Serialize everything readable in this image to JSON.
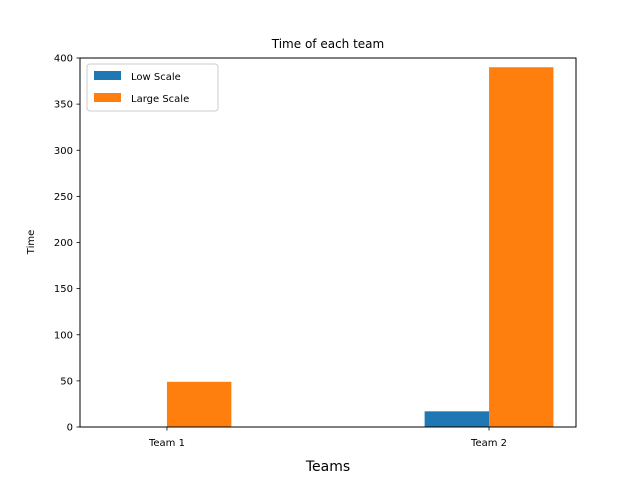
{
  "chart_data": {
    "type": "bar",
    "title": "Time of each team",
    "xlabel": "Teams",
    "ylabel": "Time",
    "categories": [
      "Team 1",
      "Team 2"
    ],
    "series": [
      {
        "name": "Low Scale",
        "values": [
          0,
          17
        ],
        "color": "#1f77b4"
      },
      {
        "name": "Large Scale",
        "values": [
          49,
          390
        ],
        "color": "#ff7f0e"
      }
    ],
    "ylim": [
      0,
      400
    ],
    "yticks": [
      0,
      50,
      100,
      150,
      200,
      250,
      300,
      350,
      400
    ],
    "grid": false,
    "legend": "top-left"
  }
}
